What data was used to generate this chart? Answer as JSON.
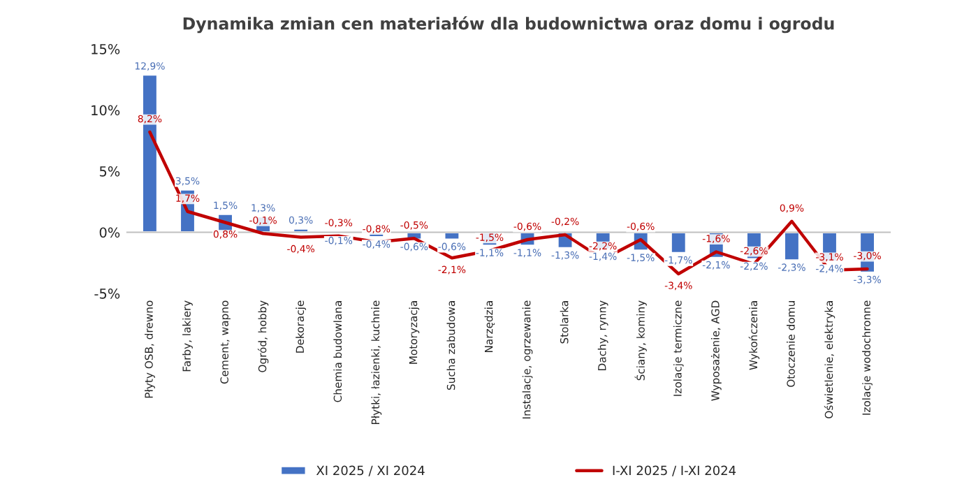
{
  "chart_data": {
    "type": "bar",
    "title": "Dynamika zmian cen materiałów dla budownictwa oraz domu i ogrodu",
    "categories": [
      "Płyty OSB, drewno",
      "Farby, lakiery",
      "Cement, wapno",
      "Ogród, hobby",
      "Dekoracje",
      "Chemia budowlana",
      "Płytki, łazienki, kuchnie",
      "Motoryzacja",
      "Sucha zabudowa",
      "Narzędzia",
      "Instalacje, ogrzewanie",
      "Stolarka",
      "Dachy, rynny",
      "Ściany, kominy",
      "Izolacje termiczne",
      "Wyposażenie, AGD",
      "Wykończenia",
      "Otoczenie domu",
      "Oświetlenie, elektryka",
      "Izolacje wodochronne"
    ],
    "series": [
      {
        "name": "XI 2025 / XI 2024",
        "color": "#4472c4",
        "values": [
          12.9,
          3.5,
          1.5,
          1.3,
          0.3,
          -0.1,
          -0.4,
          -0.6,
          -0.6,
          -1.1,
          -1.1,
          -1.3,
          -1.4,
          -1.5,
          -1.7,
          -2.1,
          -2.2,
          -2.3,
          -2.4,
          -3.3
        ],
        "value_labels": [
          "12,9%",
          "3,5%",
          "1,5%",
          "1,3%",
          "0,3%",
          "-0,1%",
          "-0,4%",
          "-0,6%",
          "-0,6%",
          "-1,1%",
          "-1,1%",
          "-1,3%",
          "-1,4%",
          "-1,5%",
          "-1,7%",
          "-2,1%",
          "-2,2%",
          "-2,3%",
          "-2,4%",
          "-3,3%"
        ]
      },
      {
        "name": "I-XI 2025 / I-XI 2024",
        "type": "line",
        "color": "#c00000",
        "values": [
          8.2,
          1.7,
          0.8,
          -0.1,
          -0.4,
          -0.3,
          -0.8,
          -0.5,
          -2.1,
          -1.5,
          -0.6,
          -0.2,
          -2.2,
          -0.6,
          -3.4,
          -1.6,
          -2.6,
          0.9,
          -3.1,
          -3.0
        ],
        "value_labels": [
          "8,2%",
          "1,7%",
          "0,8%",
          "-0,1%",
          "-0,4%",
          "-0,3%",
          "-0,8%",
          "-0,5%",
          "-2,1%",
          "-1,5%",
          "-0,6%",
          "-0,2%",
          "-2,2%",
          "-0,6%",
          "-3,4%",
          "-1,6%",
          "-2,6%",
          "0,9%",
          "-3,1%",
          "-3,0%"
        ]
      }
    ],
    "ylim": [
      -5,
      15
    ],
    "yticks": [
      {
        "value": -5,
        "label": "-5%"
      },
      {
        "value": 0,
        "label": "0%"
      },
      {
        "value": 5,
        "label": "5%"
      },
      {
        "value": 10,
        "label": "10%"
      },
      {
        "value": 15,
        "label": "15%"
      }
    ],
    "legend": "bottom"
  }
}
